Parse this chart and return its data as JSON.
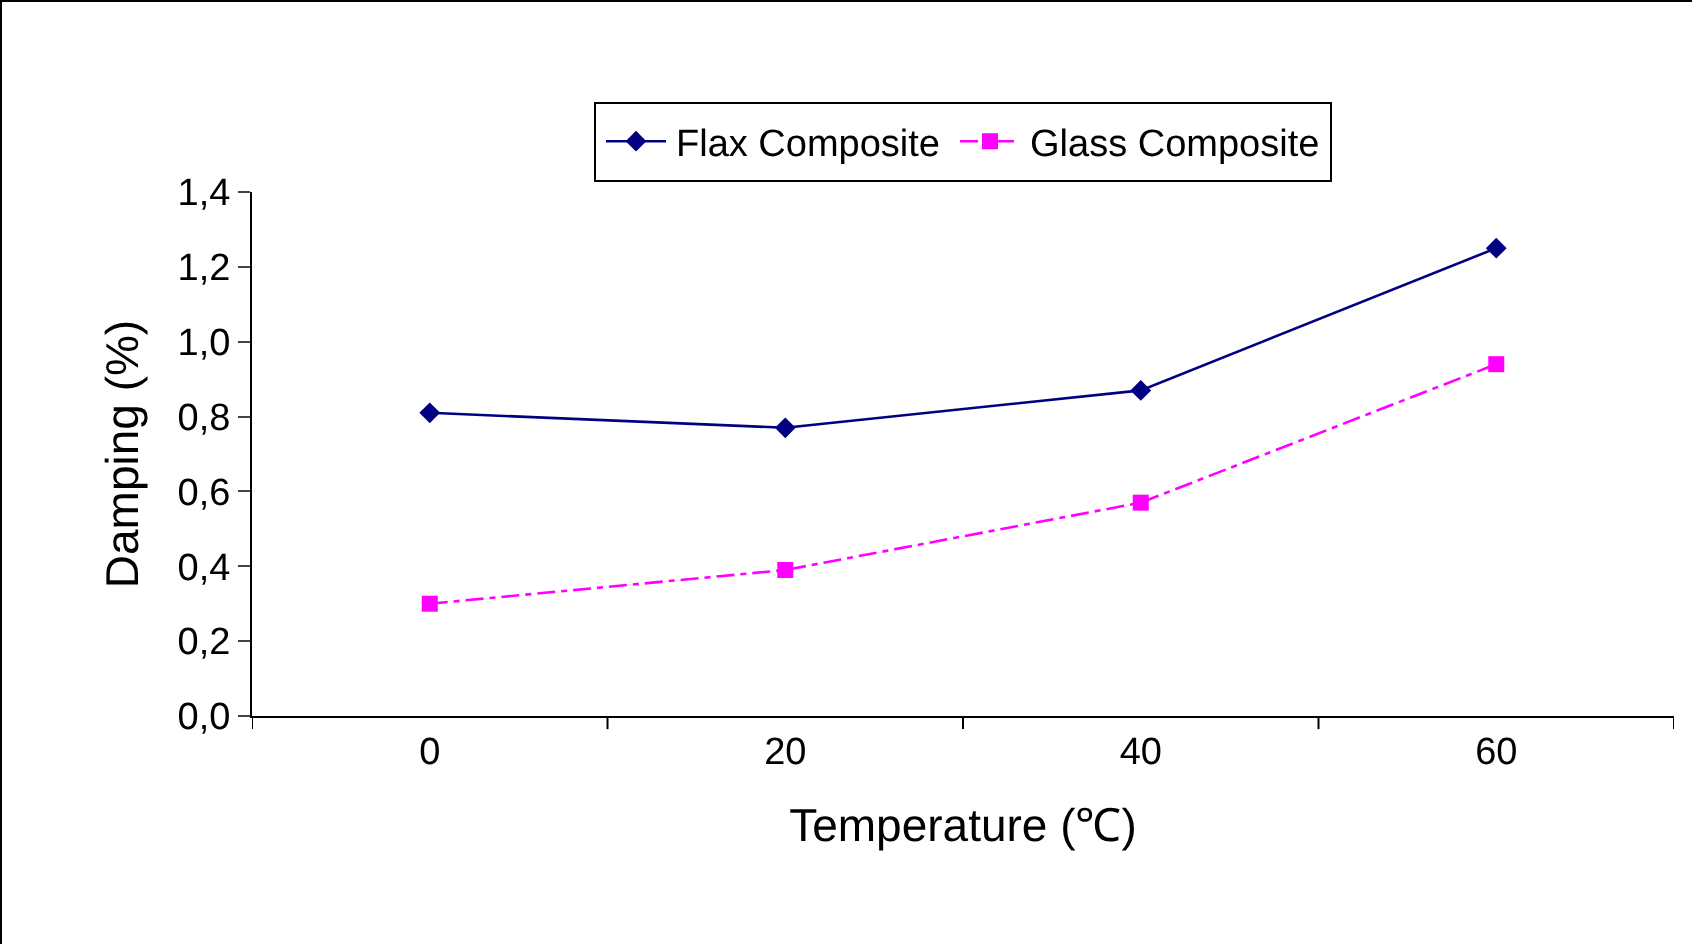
{
  "chart_data": {
    "type": "line",
    "xlabel": "Temperature (℃)",
    "ylabel": "Damping (%)",
    "categories": [
      "0",
      "20",
      "40",
      "60"
    ],
    "series": [
      {
        "name": "Flax Composite",
        "color": "#000080",
        "values": [
          0.81,
          0.77,
          0.87,
          1.25
        ],
        "marker": "diamond",
        "line_style": "solid"
      },
      {
        "name": "Glass Composite",
        "color": "#ff00ff",
        "values": [
          0.3,
          0.39,
          0.57,
          0.94
        ],
        "marker": "square",
        "line_style": "dashed"
      }
    ],
    "ylim": [
      0,
      1.4
    ],
    "yticks": [
      {
        "value": 0,
        "label": "0,0"
      },
      {
        "value": 0.2,
        "label": "0,2"
      },
      {
        "value": 0.4,
        "label": "0,4"
      },
      {
        "value": 0.6,
        "label": "0,6"
      },
      {
        "value": 0.8,
        "label": "0,8"
      },
      {
        "value": 1.0,
        "label": "1,0"
      },
      {
        "value": 1.2,
        "label": "1,2"
      },
      {
        "value": 1.4,
        "label": "1,4"
      }
    ],
    "grid": false,
    "legend": "top"
  }
}
